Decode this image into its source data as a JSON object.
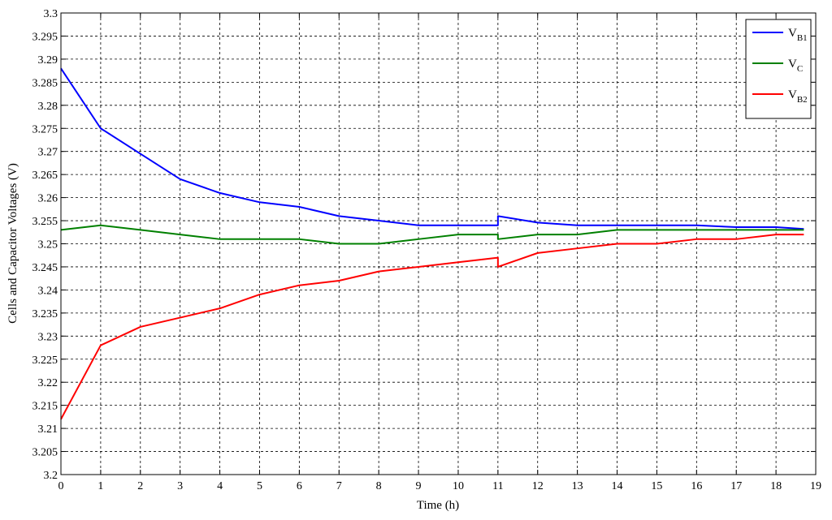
{
  "chart_data": {
    "type": "line",
    "title": "",
    "xlabel": "Time (h)",
    "ylabel": "Cells and Capacitor Voltages (V)",
    "xlim": [
      0,
      19
    ],
    "ylim": [
      3.2,
      3.3
    ],
    "x_ticks": [
      "0",
      "1",
      "2",
      "3",
      "4",
      "5",
      "6",
      "7",
      "8",
      "9",
      "10",
      "11",
      "12",
      "13",
      "14",
      "15",
      "16",
      "17",
      "18",
      "19"
    ],
    "y_ticks": [
      "3.2",
      "3.205",
      "3.21",
      "3.215",
      "3.22",
      "3.225",
      "3.23",
      "3.235",
      "3.24",
      "3.245",
      "3.25",
      "3.255",
      "3.26",
      "3.265",
      "3.27",
      "3.275",
      "3.28",
      "3.285",
      "3.29",
      "3.295",
      "3.3"
    ],
    "grid": true,
    "legend_position": "top-right",
    "series": [
      {
        "name": "V",
        "sub": "B1",
        "color": "#0000ff",
        "points": [
          [
            0,
            3.288
          ],
          [
            1,
            3.275
          ],
          [
            2,
            3.2695
          ],
          [
            3,
            3.264
          ],
          [
            4,
            3.261
          ],
          [
            5,
            3.259
          ],
          [
            6,
            3.258
          ],
          [
            7,
            3.256
          ],
          [
            8,
            3.255
          ],
          [
            9,
            3.254
          ],
          [
            10,
            3.254
          ],
          [
            11,
            3.254
          ],
          [
            11,
            3.256
          ],
          [
            12,
            3.2546
          ],
          [
            13,
            3.254
          ],
          [
            14,
            3.254
          ],
          [
            15,
            3.254
          ],
          [
            16,
            3.254
          ],
          [
            17,
            3.2536
          ],
          [
            18,
            3.2536
          ],
          [
            18.7,
            3.2532
          ]
        ]
      },
      {
        "name": "V",
        "sub": "C",
        "color": "#008000",
        "points": [
          [
            0,
            3.253
          ],
          [
            1,
            3.254
          ],
          [
            2,
            3.253
          ],
          [
            3,
            3.252
          ],
          [
            4,
            3.251
          ],
          [
            5,
            3.251
          ],
          [
            6,
            3.251
          ],
          [
            7,
            3.25
          ],
          [
            8,
            3.25
          ],
          [
            9,
            3.251
          ],
          [
            10,
            3.252
          ],
          [
            11,
            3.252
          ],
          [
            11,
            3.251
          ],
          [
            12,
            3.252
          ],
          [
            13,
            3.252
          ],
          [
            14,
            3.253
          ],
          [
            15,
            3.253
          ],
          [
            16,
            3.253
          ],
          [
            17,
            3.253
          ],
          [
            18,
            3.253
          ],
          [
            18.7,
            3.253
          ]
        ]
      },
      {
        "name": "V",
        "sub": "B2",
        "color": "#ff0000",
        "points": [
          [
            0,
            3.212
          ],
          [
            1,
            3.228
          ],
          [
            2,
            3.232
          ],
          [
            3,
            3.234
          ],
          [
            4,
            3.236
          ],
          [
            5,
            3.239
          ],
          [
            6,
            3.241
          ],
          [
            7,
            3.242
          ],
          [
            8,
            3.244
          ],
          [
            9,
            3.245
          ],
          [
            10,
            3.246
          ],
          [
            11,
            3.247
          ],
          [
            11,
            3.245
          ],
          [
            12,
            3.248
          ],
          [
            13,
            3.249
          ],
          [
            14,
            3.25
          ],
          [
            15,
            3.25
          ],
          [
            16,
            3.251
          ],
          [
            17,
            3.251
          ],
          [
            18,
            3.252
          ],
          [
            18.7,
            3.252
          ]
        ]
      }
    ]
  }
}
